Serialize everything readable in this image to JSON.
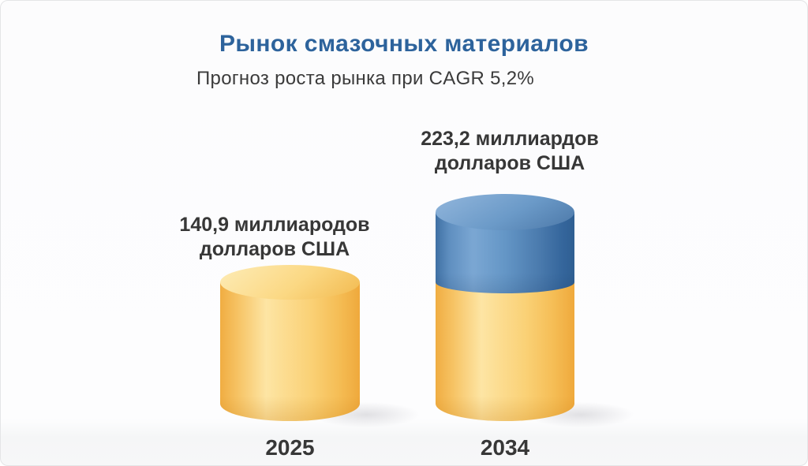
{
  "title": "Рынок смазочных материалов",
  "subtitle": "Прогноз роста рынка при CAGR 5,2%",
  "bars": [
    {
      "year": "2025",
      "label_line1": "140,9 миллиародов",
      "label_line2": "долларов США"
    },
    {
      "year": "2034",
      "label_line1": "223,2 миллиардов",
      "label_line2": "долларов США"
    }
  ],
  "colors": {
    "title_blue": "#2d639c",
    "text_dark": "#373737",
    "cylinder_yellow": "#f9cf72",
    "cylinder_blue": "#5b8cbe"
  },
  "chart_data": {
    "type": "bar",
    "subtype": "3d-cylinder-pictogram",
    "title": "Рынок смазочных материалов",
    "subtitle": "Прогноз роста рынка при CAGR 5,2%",
    "cagr_percent": 5.2,
    "categories": [
      "2025",
      "2034"
    ],
    "values": [
      140.9,
      223.2
    ],
    "unit": "миллиардов долларов США",
    "data_labels": [
      "140,9 миллиародов долларов США",
      "223,2 миллиардов долларов США"
    ],
    "series": [
      {
        "name": "base-2025-level",
        "color": "#f9cf72",
        "values": [
          140.9,
          140.9
        ]
      },
      {
        "name": "growth-to-2034",
        "color": "#5b8cbe",
        "values": [
          0,
          82.3
        ]
      }
    ],
    "legend": false,
    "axes": false,
    "grid": false
  }
}
